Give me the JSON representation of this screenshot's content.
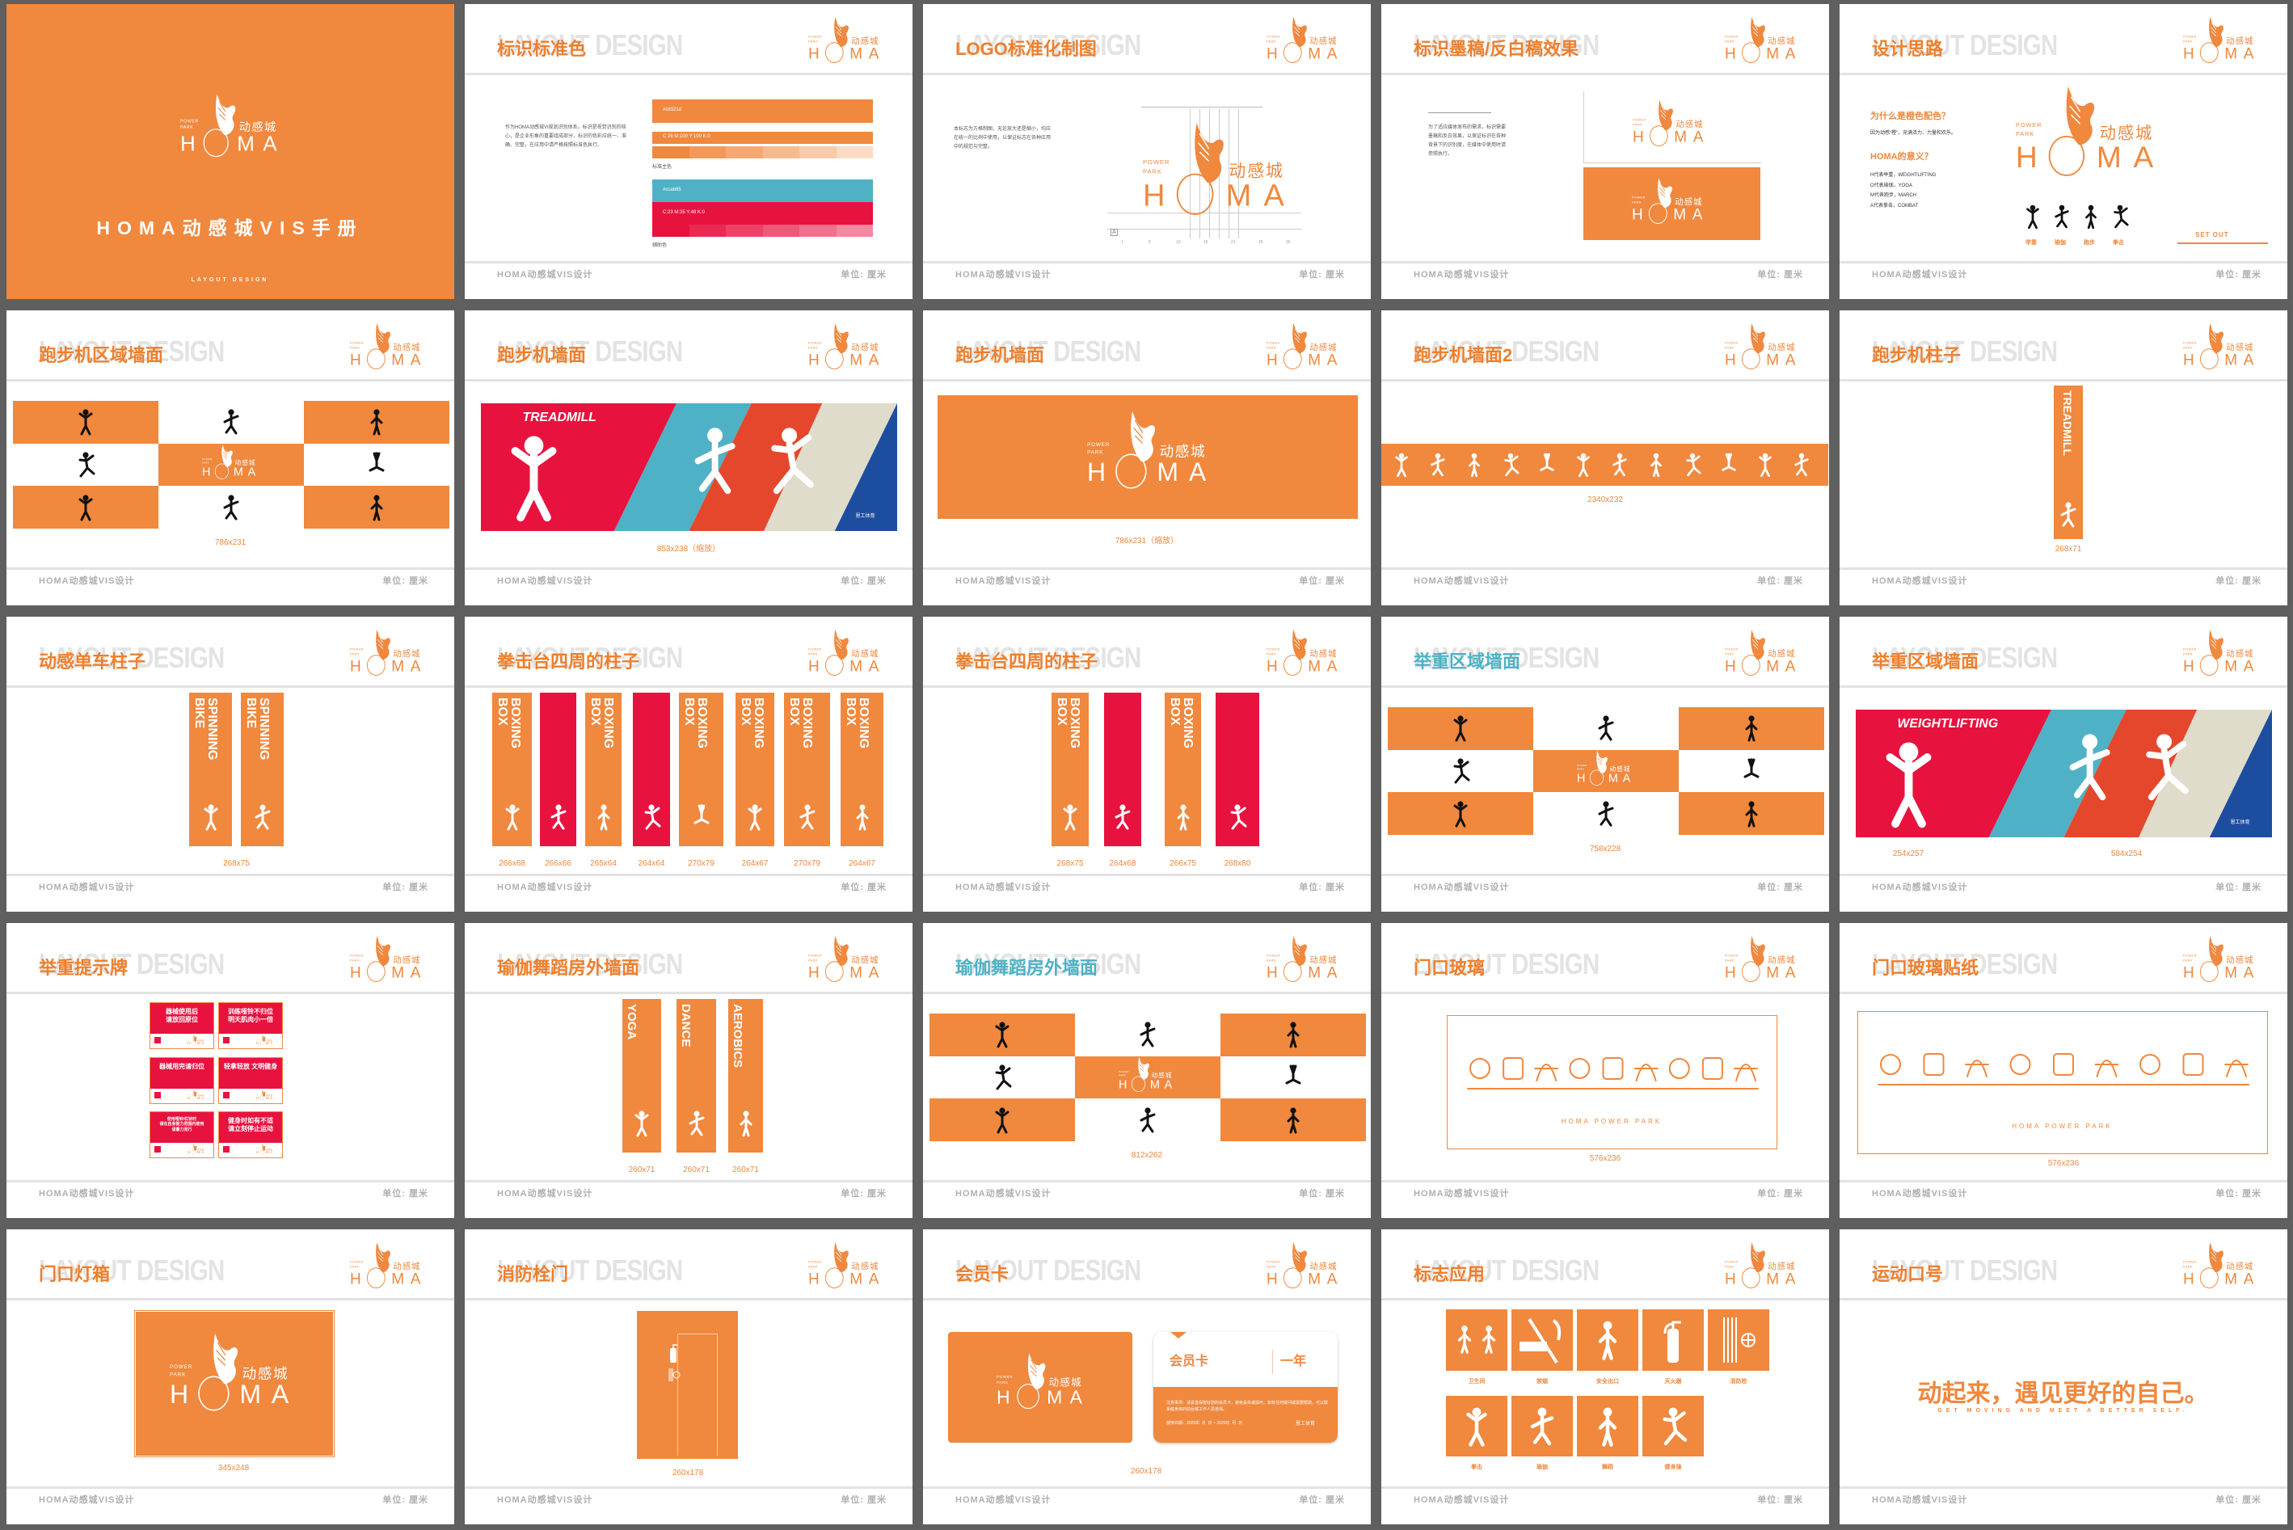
{
  "colors": {
    "background": "#5f5f5f",
    "orange": "#f0883e",
    "title_orange": "#ee7f2d",
    "red": "#e8123f",
    "teal": "#4fb1c5",
    "red_orange": "#e5472c",
    "beige": "#e0dccb",
    "blue": "#1d4d9f",
    "ghost": "#e3e3e3",
    "footer": "#b0b0b0"
  },
  "logo": {
    "tag_top": "POWER",
    "tag_bottom": "PARK",
    "cn": "动感城",
    "h": "H",
    "ma": "MA"
  },
  "common": {
    "ghost": "LAYOUT DESIGN",
    "footer_left": "HOMA动感城VIS设计",
    "footer_right": "单位: 厘米"
  },
  "pages": [
    {
      "kind": "cover",
      "title": "HOMA动感城VIS手册",
      "subtitle": "LAYOUT DESIGN"
    },
    {
      "kind": "colors",
      "title": "标识标准色",
      "text": "作为HOMA动感城VI规划识别体系，标识是视觉识别的核心，是企业形象的重要组成部分，标识的色彩应统一、准确、完整，在应用中请严格按照标准色执行。",
      "primary": {
        "hex": "#c8321d",
        "cmyk": "C:26 M:100 Y:100 K:0",
        "label": "标准主色"
      },
      "secondary": {
        "hex": "#ccab85",
        "cmyk": "C:23 M:35 Y:48 K:0",
        "label": "辅助色"
      }
    },
    {
      "kind": "logo-grid",
      "title": "LOGO标准化制图",
      "text": "本标志为方格制图，无论放大还是缩小，均应在统一的比例中使用，以保证标志在各种应用中的规范与完整。",
      "ticks": [
        "1",
        "5",
        "10",
        "15",
        "21",
        "25",
        "30"
      ],
      "marker": "A"
    },
    {
      "kind": "mono",
      "title": "标识墨稿/反白稿效果",
      "text": "为了适应媒体发布的需求，标识需要墨稿和反白效果，以保证标识在各种背景下的识别度，在媒体中使用时请参照执行。"
    },
    {
      "kind": "concept",
      "title": "设计思路",
      "q1": "为什么是橙色配色？",
      "a1": "因为动感“橙”，充满活力、力量和欢乐。",
      "q2": "HOMA的意义？",
      "lines": [
        "H代表举重，WEIGHTLIFTING",
        "O代表瑜伽，YOGA",
        "M代表跑步，MARCH",
        "A代表拳击，COMBAT"
      ],
      "icons": [
        {
          "label": "举重",
          "icon": "weightlifting-icon"
        },
        {
          "label": "瑜伽",
          "icon": "yoga-icon"
        },
        {
          "label": "跑步",
          "icon": "treadmill-icon"
        },
        {
          "label": "拳击",
          "icon": "boxing-icon"
        }
      ],
      "cta": "SET OUT"
    },
    {
      "kind": "checker",
      "title": "跑步机区域墙面",
      "caption": "786x231"
    },
    {
      "kind": "stripes",
      "title": "跑步机墙面",
      "banner": "TREADMILL",
      "brand": "恩工体育",
      "captions": [
        "853x238（缩放）"
      ]
    },
    {
      "kind": "logo-banner",
      "title": "跑步机墙面",
      "caption": "786x231（缩放）"
    },
    {
      "kind": "strip",
      "title": "跑步机墙面2",
      "caption": "2340x232"
    },
    {
      "kind": "pillar",
      "title": "跑步机柱子",
      "label": "TREADMILL",
      "caption": "268x71"
    },
    {
      "kind": "pillars",
      "title": "动感单车柱子",
      "columns": [
        {
          "text": "SPINNING\nBIKE",
          "color": "orange"
        },
        {
          "text": "SPINNING\nBIKE",
          "color": "orange"
        }
      ],
      "captions": [
        "268x75"
      ]
    },
    {
      "kind": "pillars",
      "title": "拳击台四周的柱子",
      "columns": [
        {
          "text": "BOXING\nBOX",
          "color": "orange"
        },
        {
          "text": "",
          "color": "red"
        },
        {
          "text": "BOXING\nBOX",
          "color": "orange"
        },
        {
          "text": "",
          "color": "red"
        },
        {
          "text": "BOXING\nBOX",
          "color": "orange"
        },
        {
          "text": "BOXING\nBOX",
          "color": "orange"
        },
        {
          "text": "BOXING\nBOX",
          "color": "orange"
        },
        {
          "text": "BOXING\nBOX",
          "color": "orange"
        }
      ],
      "captions": [
        "266x68",
        "266x66",
        "265x64",
        "264x64",
        "270x79",
        "264x67",
        "270x79",
        "264x67"
      ]
    },
    {
      "kind": "pillars",
      "title": "拳击台四周的柱子",
      "columns": [
        {
          "text": "BOXING\nBOX",
          "color": "orange"
        },
        {
          "text": "",
          "color": "red"
        },
        {
          "text": "BOXING\nBOX",
          "color": "orange"
        },
        {
          "text": "",
          "color": "red"
        }
      ],
      "captions": [
        "268x75",
        "264x68",
        "266x75",
        "268x80"
      ]
    },
    {
      "kind": "checker",
      "title": "举重区域墙面",
      "title_color": "teal",
      "caption": "758x228"
    },
    {
      "kind": "stripes",
      "title": "举重区域墙面",
      "banner": "WEIGHTLIFTING",
      "brand": "恩工体育",
      "captions": [
        "254x257",
        "584x254"
      ]
    },
    {
      "kind": "signs",
      "title": "举重提示牌",
      "signs": [
        {
          "text": "器械使用后\n请放回原位"
        },
        {
          "text": "训练哑铃不归位\n明天肌肉小一倍"
        },
        {
          "text": "器械用完请归位"
        },
        {
          "text": "轻拿轻放 文明健身"
        },
        {
          "text": "使用哑铃/杠铃时\n请在自身能力范围内使用\n请量力而行"
        },
        {
          "text": "健身时如有不适\n请立刻停止运动"
        }
      ]
    },
    {
      "kind": "pillars",
      "title": "瑜伽舞蹈房外墙面",
      "columns": [
        {
          "text": "YOGA",
          "color": "orange"
        },
        {
          "text": "DANCE",
          "color": "orange"
        },
        {
          "text": "AEROBICS",
          "color": "orange"
        }
      ],
      "captions": [
        "260x71",
        "260x71",
        "260x71"
      ]
    },
    {
      "kind": "checker",
      "title": "瑜伽舞蹈房外墙面",
      "title_color": "teal",
      "caption": "812x262"
    },
    {
      "kind": "glass",
      "title": "门口玻璃",
      "text": "HOMA POWER PARK",
      "caption": "576x236"
    },
    {
      "kind": "glass",
      "title": "门口玻璃贴纸",
      "text": "HOMA POWER PARK",
      "caption": "576x236"
    },
    {
      "kind": "lightbox",
      "title": "门口灯箱",
      "caption": "345x248"
    },
    {
      "kind": "firedoor",
      "title": "消防栓门",
      "caption": "260x178"
    },
    {
      "kind": "card",
      "title": "会员卡",
      "card_title": "会员卡",
      "term": "一年",
      "note": "注意事项：请妥善保管好您的会员卡，避免丢失或损坏。如有任何疑问或需要帮助，可以联系健身房的前台或工作人员咨询。",
      "date": "使用日期：2025年  月  日 ~ 2026年  月  日",
      "brand": "恩工体育",
      "caption": "260x178"
    },
    {
      "kind": "signage",
      "title": "标志应用",
      "items": [
        {
          "label": "卫生间",
          "icon": "restroom-icon"
        },
        {
          "label": "禁烟",
          "icon": "no-smoking-icon"
        },
        {
          "label": "安全出口",
          "icon": "exit-icon"
        },
        {
          "label": "灭火器",
          "icon": "fire-extinguisher-icon"
        },
        {
          "label": "消防栓",
          "icon": "fire-hose-icon"
        },
        {
          "label": "拳击",
          "icon": "boxing-icon"
        },
        {
          "label": "瑜伽",
          "icon": "yoga-icon"
        },
        {
          "label": "舞蹈",
          "icon": "dance-icon"
        },
        {
          "label": "健身操",
          "icon": "aerobics-icon"
        }
      ]
    },
    {
      "kind": "slogan",
      "title": "运动口号",
      "cn": "动起来，遇见更好的自己。",
      "en": "GET MOVING AND MEET A BETTER SELF."
    }
  ]
}
